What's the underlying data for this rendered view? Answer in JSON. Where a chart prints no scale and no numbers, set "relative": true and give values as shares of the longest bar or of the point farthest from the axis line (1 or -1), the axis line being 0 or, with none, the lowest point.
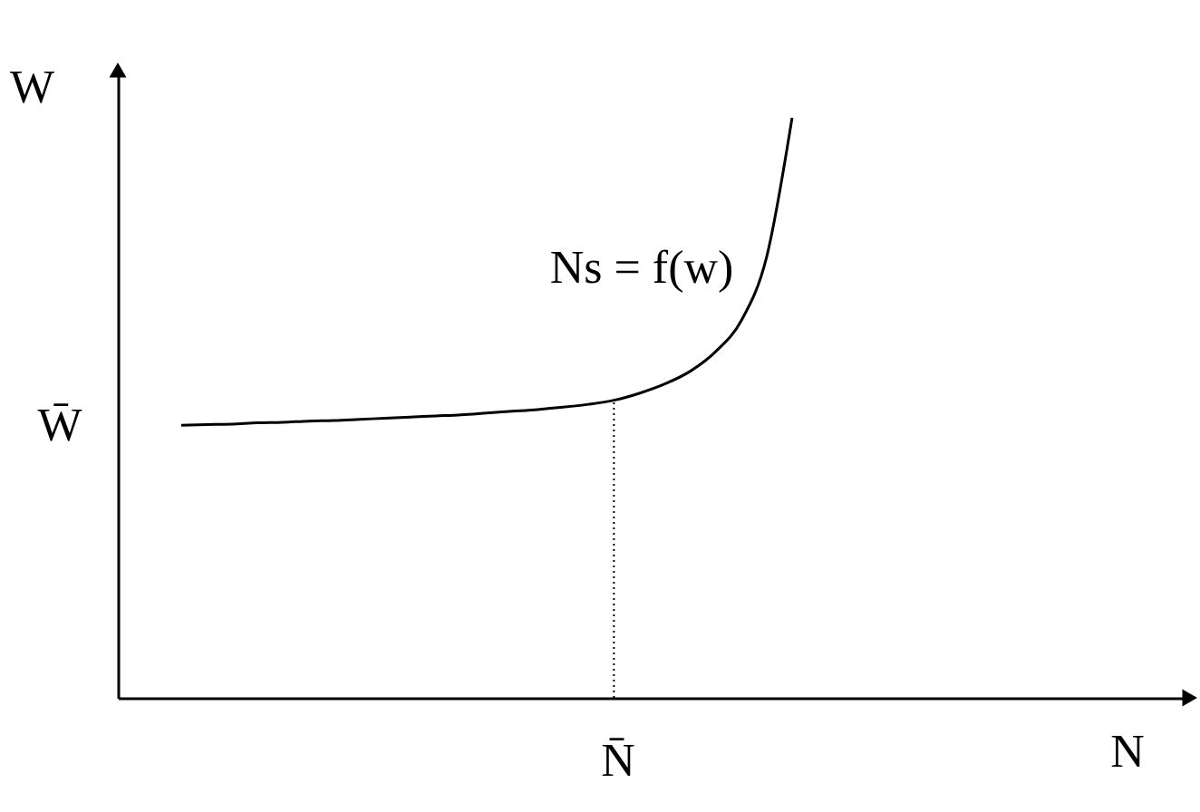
{
  "chart_data": {
    "type": "line",
    "relative": true,
    "ylabel": "W",
    "categories": [
      null,
      null,
      null,
      null,
      null,
      null,
      null,
      null,
      null,
      null,
      null,
      null,
      null,
      null,
      null,
      null,
      null,
      null,
      null,
      null,
      null,
      null,
      null,
      null,
      null
    ],
    "series": [
      {
        "name": "Ns = f(w)",
        "color": "#000000",
        "values": [
          0.47,
          0.471,
          0.472,
          0.474,
          0.475,
          0.477,
          0.478,
          0.48,
          0.482,
          0.484,
          0.486,
          0.488,
          0.491,
          0.494,
          0.497,
          0.501,
          0.506,
          0.513,
          0.525,
          0.541,
          0.563,
          0.597,
          0.65,
          0.76,
          1
        ]
      }
    ],
    "annotations": [
      "W̄",
      "N̄",
      "N"
    ]
  }
}
